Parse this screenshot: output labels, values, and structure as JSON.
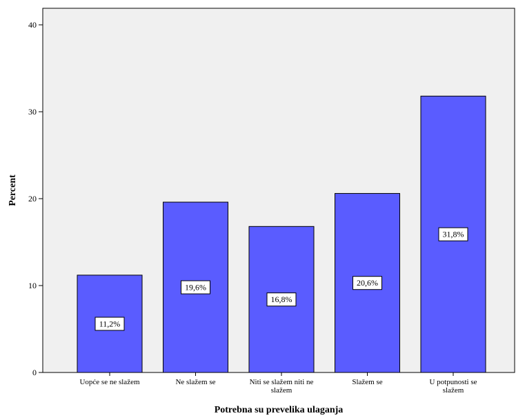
{
  "chart_data": {
    "type": "bar",
    "categories": [
      [
        "Uopće se ne slažem"
      ],
      [
        "Ne slažem se"
      ],
      [
        "Niti se slažem niti ne",
        "slažem"
      ],
      [
        "Slažem se"
      ],
      [
        "U potpunosti se",
        "slažem"
      ]
    ],
    "values": [
      11.2,
      19.6,
      16.8,
      20.6,
      31.8
    ],
    "data_labels": [
      "11,2%",
      "19,6%",
      "16,8%",
      "20,6%",
      "31,8%"
    ],
    "xlabel": "Potrebna su prevelika ulaganja",
    "ylabel": "Percent",
    "ylim": [
      0,
      40
    ],
    "yticks": [
      0,
      10,
      20,
      30,
      40
    ],
    "grid": false,
    "colors": {
      "bar": "#5a5cff",
      "plot_background": "#f0f0f0",
      "bar_stroke": "#000000"
    }
  }
}
